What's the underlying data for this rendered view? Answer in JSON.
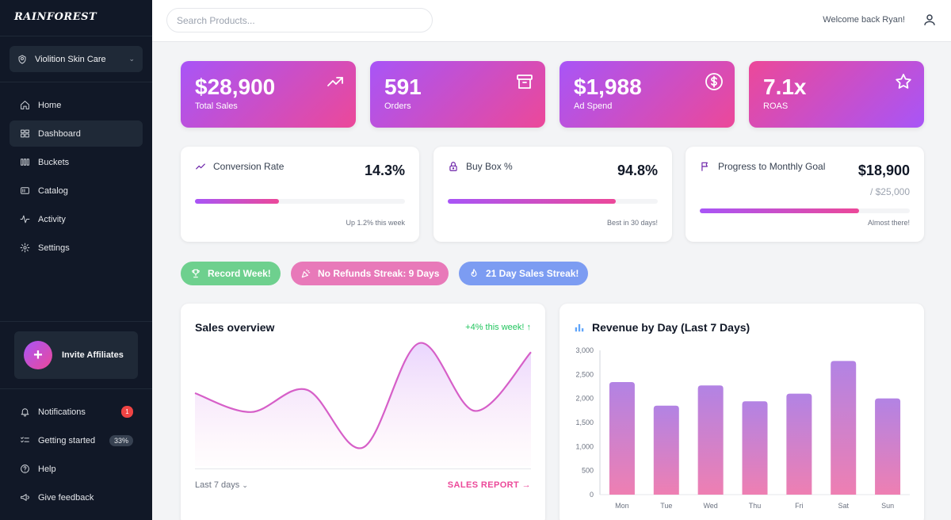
{
  "brand": {
    "logo": "RAINFOREST"
  },
  "sidebar": {
    "store": "Violition Skin Care",
    "nav": [
      {
        "label": "Home",
        "icon": "home-icon"
      },
      {
        "label": "Dashboard",
        "icon": "dashboard-icon",
        "active": true
      },
      {
        "label": "Buckets",
        "icon": "buckets-icon"
      },
      {
        "label": "Catalog",
        "icon": "catalog-icon"
      },
      {
        "label": "Activity",
        "icon": "activity-icon"
      },
      {
        "label": "Settings",
        "icon": "settings-icon"
      }
    ],
    "invite_label": "Invite Affiliates",
    "bottom": [
      {
        "label": "Notifications",
        "badge": "1"
      },
      {
        "label": "Getting started",
        "badge": "33%"
      },
      {
        "label": "Help"
      },
      {
        "label": "Give feedback"
      }
    ]
  },
  "topbar": {
    "search_placeholder": "Search Products...",
    "welcome": "Welcome back Ryan!"
  },
  "kpis": [
    {
      "value": "$28,900",
      "label": "Total Sales",
      "icon": "trending-up-icon"
    },
    {
      "value": "591",
      "label": "Orders",
      "icon": "archive-box-icon"
    },
    {
      "value": "$1,988",
      "label": "Ad Spend",
      "icon": "dollar-circle-icon"
    },
    {
      "value": "7.1x",
      "label": "ROAS",
      "icon": "star-icon"
    }
  ],
  "metrics": [
    {
      "title": "Conversion Rate",
      "value": "14.3%",
      "note": "Up 1.2% this week",
      "progress": 0.4
    },
    {
      "title": "Buy Box %",
      "value": "94.8%",
      "note": "Best in 30 days!",
      "progress": 0.8
    },
    {
      "title": "Progress to Monthly Goal",
      "value": "$18,900",
      "sub": "/ $25,000",
      "note": "Almost there!",
      "progress": 0.76
    }
  ],
  "pills": [
    {
      "label": "Record Week!",
      "color": "#6ed08e"
    },
    {
      "label": "No Refunds Streak: 9 Days",
      "color": "#e879b9"
    },
    {
      "label": "21 Day Sales Streak!",
      "color": "#7c9cf2"
    }
  ],
  "sales_overview": {
    "title": "Sales overview",
    "growth": "+4% this week! ↑",
    "range": "Last 7 days",
    "report_link": "SALES REPORT →"
  },
  "colors": {
    "accent_purple": "#a855f7",
    "accent_pink": "#ec4899",
    "sidebar_bg": "#111827"
  },
  "chart_data": [
    {
      "type": "line",
      "title": "Sales overview",
      "x": [
        0,
        1,
        2,
        3,
        4,
        5,
        6
      ],
      "values": [
        0.55,
        0.38,
        0.58,
        0.06,
        1.0,
        0.39,
        0.92
      ],
      "ylim": [
        0,
        1
      ],
      "note": "No axes shown; relative curve"
    },
    {
      "type": "bar",
      "title": "Revenue by Day (Last 7 Days)",
      "categories": [
        "Mon",
        "Tue",
        "Wed",
        "Thu",
        "Fri",
        "Sat",
        "Sun"
      ],
      "values": [
        2340,
        1850,
        2270,
        1940,
        2100,
        2780,
        2000
      ],
      "ylim": [
        0,
        3000
      ],
      "yticks": [
        "0",
        "500",
        "1,000",
        "1,500",
        "2,000",
        "2,500",
        "3,000"
      ]
    }
  ]
}
